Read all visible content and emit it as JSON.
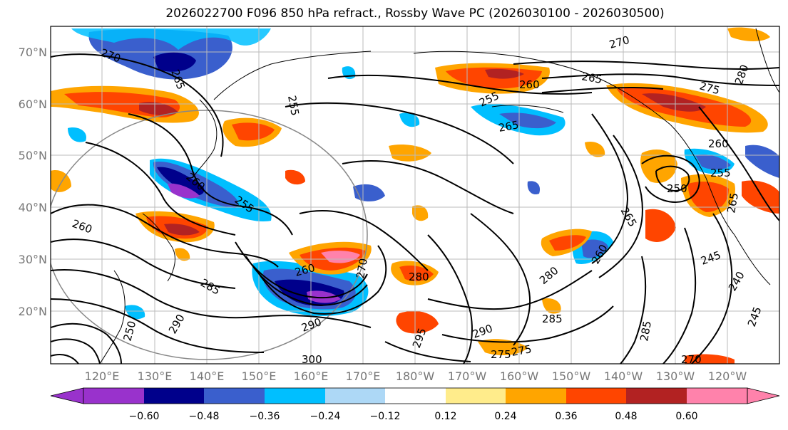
{
  "title": "2026022700 F096 850 hPa refract., Rossby Wave PC (2026030100 - 2026030500)",
  "map": {
    "lat_labels": [
      "70°N",
      "60°N",
      "50°N",
      "40°N",
      "30°N",
      "20°N"
    ],
    "lon_labels": [
      "120°E",
      "130°E",
      "140°E",
      "150°E",
      "160°E",
      "170°E",
      "180°W",
      "170°W",
      "160°W",
      "150°W",
      "140°W",
      "130°W",
      "120°W"
    ],
    "contour_labels": [
      "270",
      "265",
      "255",
      "260",
      "270",
      "265",
      "260",
      "255",
      "265",
      "275",
      "280",
      "260",
      "250",
      "255",
      "265",
      "260",
      "255",
      "245",
      "240",
      "245",
      "260",
      "260",
      "270",
      "280",
      "285",
      "290",
      "290",
      "275",
      "300",
      "295",
      "285",
      "280",
      "290",
      "250",
      "270",
      "265",
      "285",
      "275"
    ]
  },
  "colorbar": {
    "colors": [
      "#9932cc",
      "#00008b",
      "#3a5fcd",
      "#00bfff",
      "#add8f6",
      "#ffffff",
      "#ffec8b",
      "#ffa500",
      "#ff4500",
      "#b22222",
      "#ff82ab"
    ],
    "tick_labels": [
      "−0.60",
      "−0.48",
      "−0.36",
      "−0.24",
      "−0.12",
      "0.12",
      "0.24",
      "0.36",
      "0.48",
      "0.60"
    ]
  }
}
